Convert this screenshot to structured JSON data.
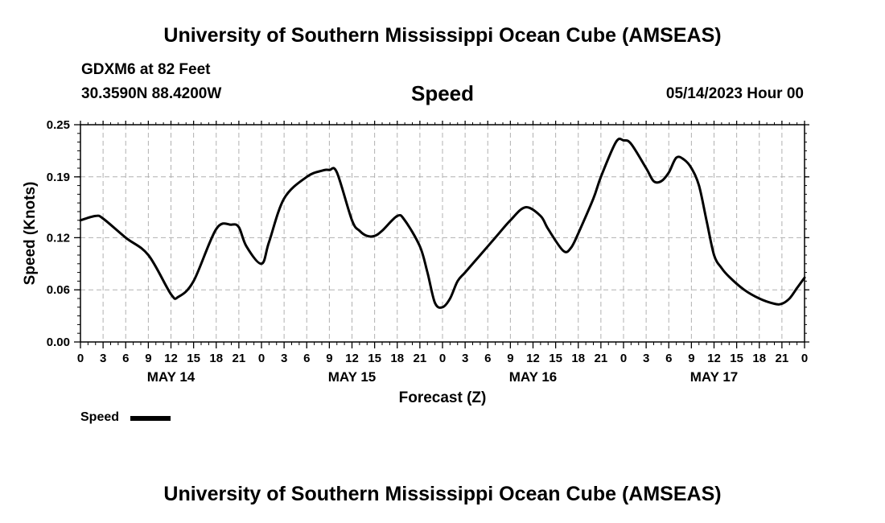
{
  "header": {
    "title": "University of Southern Mississippi Ocean Cube (AMSEAS)",
    "station": "GDXM6 at 82 Feet",
    "coordinates": "30.3590N  88.4200W",
    "datetime": "05/14/2023 Hour 00"
  },
  "footer": {
    "title": "University of Southern Mississippi Ocean Cube (AMSEAS)"
  },
  "legend": {
    "label": "Speed"
  },
  "chart_data": {
    "type": "line",
    "title": "Speed",
    "xlabel": "Forecast (Z)",
    "ylabel": "Speed (Knots)",
    "xlim": [
      0,
      96
    ],
    "ylim": [
      0,
      0.25
    ],
    "yticks": [
      0,
      0.06,
      0.12,
      0.19,
      0.25
    ],
    "ytick_labels": [
      "0.00",
      "0.06",
      "0.12",
      "0.19",
      "0.25"
    ],
    "xtick_labels": [
      "0",
      "3",
      "6",
      "9",
      "12",
      "15",
      "18",
      "21",
      "0",
      "3",
      "6",
      "9",
      "12",
      "15",
      "18",
      "21",
      "0",
      "3",
      "6",
      "9",
      "12",
      "15",
      "18",
      "21",
      "0",
      "3",
      "6",
      "9",
      "12",
      "15",
      "18",
      "21",
      "0"
    ],
    "day_labels": [
      {
        "label": "MAY 14",
        "hour": 12
      },
      {
        "label": "MAY 15",
        "hour": 36
      },
      {
        "label": "MAY 16",
        "hour": 60
      },
      {
        "label": "MAY 17",
        "hour": 84
      }
    ],
    "grid": true,
    "series": [
      {
        "name": "Speed",
        "color": "#000000",
        "x": [
          0,
          2,
          3,
          6,
          9,
          12,
          13,
          15,
          18,
          20,
          21,
          22,
          24,
          25,
          27,
          30,
          32,
          33,
          34,
          36,
          37,
          38,
          39,
          40,
          42,
          43,
          45,
          46,
          47,
          48,
          49,
          50,
          51,
          53,
          55,
          57,
          59,
          61,
          62,
          64,
          65,
          66,
          68,
          69,
          71,
          72,
          73,
          75,
          76,
          77,
          78,
          79,
          80,
          81,
          82,
          83,
          84,
          85,
          86,
          88,
          90,
          92,
          93,
          94,
          95,
          96
        ],
        "values": [
          0.14,
          0.145,
          0.142,
          0.12,
          0.1,
          0.055,
          0.052,
          0.07,
          0.13,
          0.135,
          0.132,
          0.11,
          0.09,
          0.115,
          0.165,
          0.19,
          0.197,
          0.198,
          0.195,
          0.14,
          0.128,
          0.122,
          0.122,
          0.128,
          0.145,
          0.14,
          0.11,
          0.08,
          0.045,
          0.04,
          0.05,
          0.07,
          0.08,
          0.1,
          0.12,
          0.14,
          0.155,
          0.145,
          0.13,
          0.105,
          0.108,
          0.125,
          0.165,
          0.19,
          0.23,
          0.232,
          0.228,
          0.2,
          0.185,
          0.185,
          0.195,
          0.212,
          0.21,
          0.2,
          0.18,
          0.14,
          0.1,
          0.085,
          0.075,
          0.06,
          0.05,
          0.044,
          0.044,
          0.05,
          0.062,
          0.074
        ]
      }
    ]
  }
}
